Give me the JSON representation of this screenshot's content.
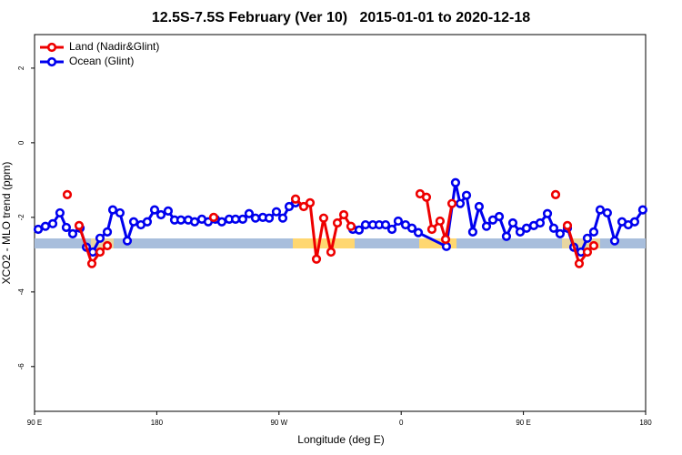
{
  "chart_data": {
    "type": "line",
    "title": "12.5S-7.5S February (Ver 10)   2015-01-01 to 2020-12-18",
    "xlabel": "Longitude (deg E)",
    "ylabel": "XCO2 - MLO trend (ppm)",
    "xlim": [
      90,
      540
    ],
    "xticks": [
      {
        "value": 90,
        "label": "90 E"
      },
      180,
      {
        "value": 270,
        "label": "90 W"
      },
      {
        "value": 360,
        "label": "0"
      },
      {
        "value": 450,
        "label": "90 E"
      },
      {
        "value": 540,
        "label": "180"
      }
    ],
    "ylim": [
      -7.2,
      2.9
    ],
    "yticks": [
      -6,
      -4,
      -2,
      0,
      2
    ],
    "legend": "top-left",
    "series": [
      {
        "name": "Land (Nadir&Glint)",
        "color": "#ee0000",
        "x": [
          114.1,
          null,
          122.8,
          132.2,
          138.2,
          143.6,
          null,
          221.9,
          null,
          282.2,
          288.2,
          292.9,
          297.6,
          302.9,
          308.3,
          313.0,
          317.7,
          323.0,
          null,
          373.9,
          378.6,
          382.6,
          388.6,
          392.7,
          397.4,
          null,
          473.7,
          null,
          482.4,
          491.1,
          497.1,
          501.8
        ],
        "values": [
          -1.39,
          null,
          -2.22,
          -3.24,
          -2.93,
          -2.76,
          null,
          -2.0,
          null,
          -1.51,
          -1.71,
          -1.61,
          -3.12,
          -2.02,
          -2.93,
          -2.15,
          -1.93,
          -2.24,
          null,
          -1.37,
          -1.46,
          -2.32,
          -2.1,
          -2.59,
          -1.63,
          null,
          -1.39,
          null,
          -2.22,
          -3.24,
          -2.93,
          -2.76
        ]
      },
      {
        "name": "Ocean (Glint)",
        "color": "#0000ee",
        "x": [
          92.7,
          98.0,
          103.4,
          108.7,
          113.4,
          118.1,
          123.5,
          128.2,
          132.9,
          138.2,
          143.6,
          147.6,
          152.9,
          158.3,
          163.0,
          168.3,
          173.0,
          178.4,
          183.1,
          188.4,
          193.1,
          197.8,
          203.2,
          207.9,
          213.2,
          217.9,
          223.2,
          227.9,
          233.3,
          238.0,
          243.3,
          248.0,
          252.7,
          258.1,
          262.8,
          268.1,
          272.8,
          277.5,
          282.2,
          null,
          324.4,
          329.0,
          333.7,
          339.1,
          343.8,
          348.5,
          353.2,
          357.8,
          363.2,
          367.9,
          372.6,
          393.3,
          400.0,
          403.4,
          408.1,
          412.7,
          417.4,
          422.8,
          427.5,
          432.2,
          437.5,
          442.2,
          447.6,
          452.3,
          457.6,
          462.3,
          467.7,
          472.3,
          477.0,
          482.4,
          487.1,
          492.4,
          497.1,
          501.8,
          506.5,
          511.8,
          517.2,
          522.6,
          527.2,
          531.9,
          537.9
        ],
        "values": [
          -2.32,
          -2.24,
          -2.17,
          -1.88,
          -2.27,
          -2.44,
          -2.29,
          -2.8,
          -2.93,
          -2.56,
          -2.39,
          -1.8,
          -1.88,
          -2.63,
          -2.12,
          -2.2,
          -2.12,
          -1.8,
          -1.93,
          -1.83,
          -2.07,
          -2.07,
          -2.07,
          -2.12,
          -2.05,
          -2.12,
          -2.05,
          -2.12,
          -2.05,
          -2.05,
          -2.05,
          -1.9,
          -2.02,
          -2.0,
          -2.02,
          -1.85,
          -2.02,
          -1.71,
          -1.61,
          null,
          -2.32,
          -2.34,
          -2.2,
          -2.2,
          -2.2,
          -2.2,
          -2.32,
          -2.1,
          -2.2,
          -2.29,
          -2.41,
          -2.78,
          -1.07,
          -1.63,
          -1.41,
          -2.39,
          -1.71,
          -2.24,
          -2.07,
          -1.98,
          -2.51,
          -2.15,
          -2.39,
          -2.29,
          -2.22,
          -2.15,
          -1.9,
          -2.29,
          -2.44,
          -2.29,
          -2.8,
          -2.93,
          -2.56,
          -2.39,
          -1.8,
          -1.88,
          -2.63,
          -2.12,
          -2.2,
          -2.12,
          -1.8
        ]
      }
    ]
  }
}
